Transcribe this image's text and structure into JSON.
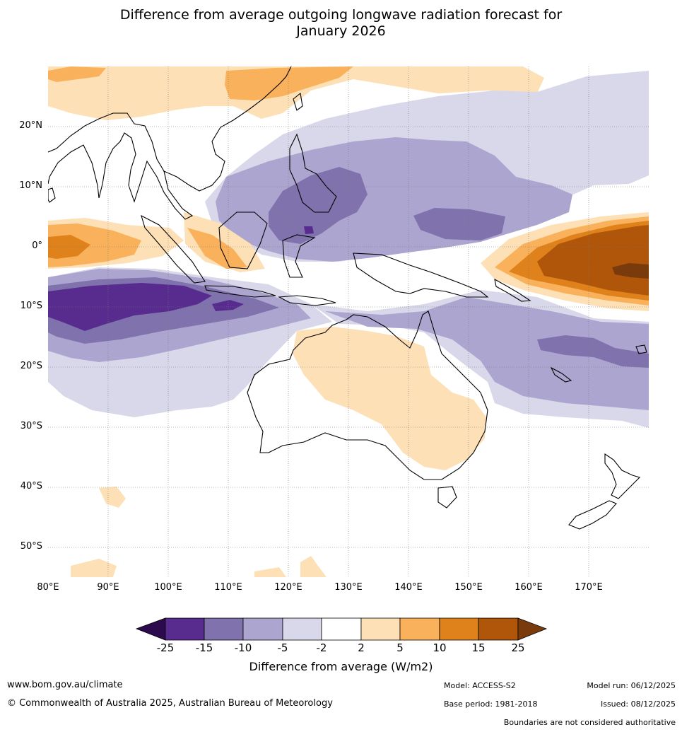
{
  "title": {
    "line1": "Difference from average outgoing longwave radiation forecast for",
    "line2": "January 2026"
  },
  "map": {
    "lat_labels": [
      "20°N",
      "10°N",
      "0°",
      "10°S",
      "20°S",
      "30°S",
      "40°S",
      "50°S"
    ],
    "lon_labels": [
      "80°E",
      "90°E",
      "100°E",
      "110°E",
      "120°E",
      "130°E",
      "140°E",
      "150°E",
      "160°E",
      "170°E"
    ],
    "lat_range": [
      -55,
      30
    ],
    "lon_range": [
      80,
      180
    ]
  },
  "colorbar": {
    "title": "Difference from average (W/m2)",
    "ticks": [
      "-25",
      "-15",
      "-10",
      "-5",
      "-2",
      "2",
      "5",
      "10",
      "15",
      "25"
    ],
    "colors": [
      "#582c8f",
      "#7f72ad",
      "#aca5cf",
      "#d8d8ea",
      "#ffffff",
      "#fde0b6",
      "#fab15b",
      "#e0821b",
      "#b0560a"
    ],
    "extend_low_color": "#2d0a4e",
    "extend_high_color": "#7a3b0c"
  },
  "footer": {
    "url": "www.bom.gov.au/climate",
    "copyright": "© Commonwealth of Australia 2025, Australian Bureau of Meteorology",
    "model": "Model: ACCESS-S2",
    "base_period": "Base period: 1981-2018",
    "model_run": "Model run: 06/12/2025",
    "issued": "Issued: 08/12/2025",
    "disclaimer": "Boundaries are not considered authoritative"
  }
}
